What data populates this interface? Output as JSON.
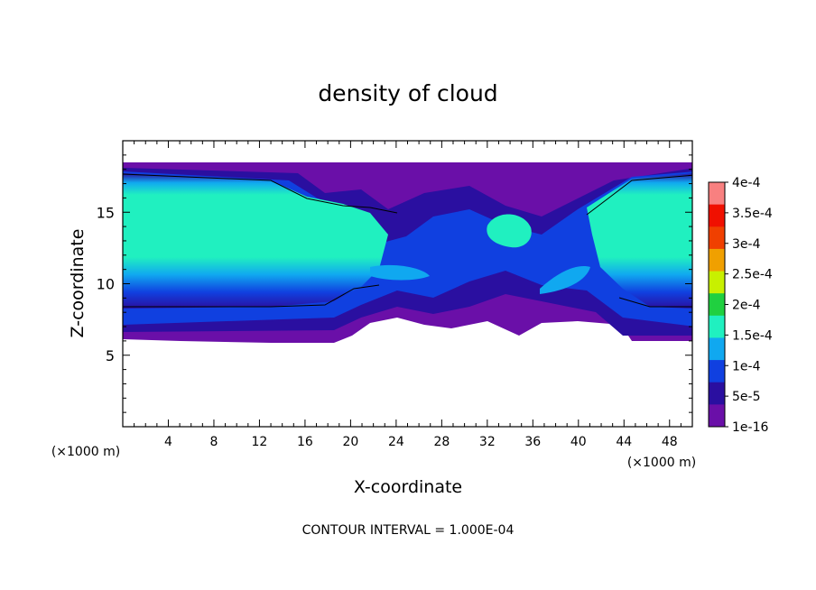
{
  "chart_data": {
    "type": "heatmap",
    "title": "density of cloud",
    "xlabel": "X-coordinate",
    "ylabel": "Z-coordinate",
    "x_unit_label": "(×1000 m)",
    "z_unit_label": "(×1000 m)",
    "xlim": [
      0,
      50
    ],
    "ylim": [
      0,
      20
    ],
    "x_ticks": [
      4,
      8,
      12,
      16,
      20,
      24,
      28,
      32,
      36,
      40,
      44,
      48
    ],
    "x_tick_labels": [
      "4",
      "8",
      "12",
      "16",
      "20",
      "24",
      "28",
      "32",
      "36",
      "40",
      "44",
      "48"
    ],
    "y_ticks": [
      5,
      10,
      15
    ],
    "y_tick_labels": [
      "5",
      "10",
      "15"
    ],
    "footer": "CONTOUR INTERVAL = 1.000E-04",
    "colorbar": {
      "labels": [
        "1e-16",
        "5e-5",
        "1e-4",
        "1.5e-4",
        "2e-4",
        "2.5e-4",
        "3e-4",
        "3.5e-4",
        "4e-4"
      ],
      "values": [
        0,
        5e-05,
        0.0001,
        0.00015,
        0.0002,
        0.00025,
        0.0003,
        0.00035,
        0.0004
      ],
      "colors": [
        "#6a0fa8",
        "#2a0fa0",
        "#1040e0",
        "#10a8f0",
        "#20f0c0",
        "#20d040",
        "#c8f000",
        "#f0a000",
        "#f04000",
        "#f01000",
        "#f88080"
      ]
    },
    "regions": {
      "cloud_top_z": 18.2,
      "cloud_base_z_left": 6.2,
      "cloud_base_z_right": 6.2,
      "core_level": "1.5e-4",
      "edge_level": "1e-16"
    }
  }
}
